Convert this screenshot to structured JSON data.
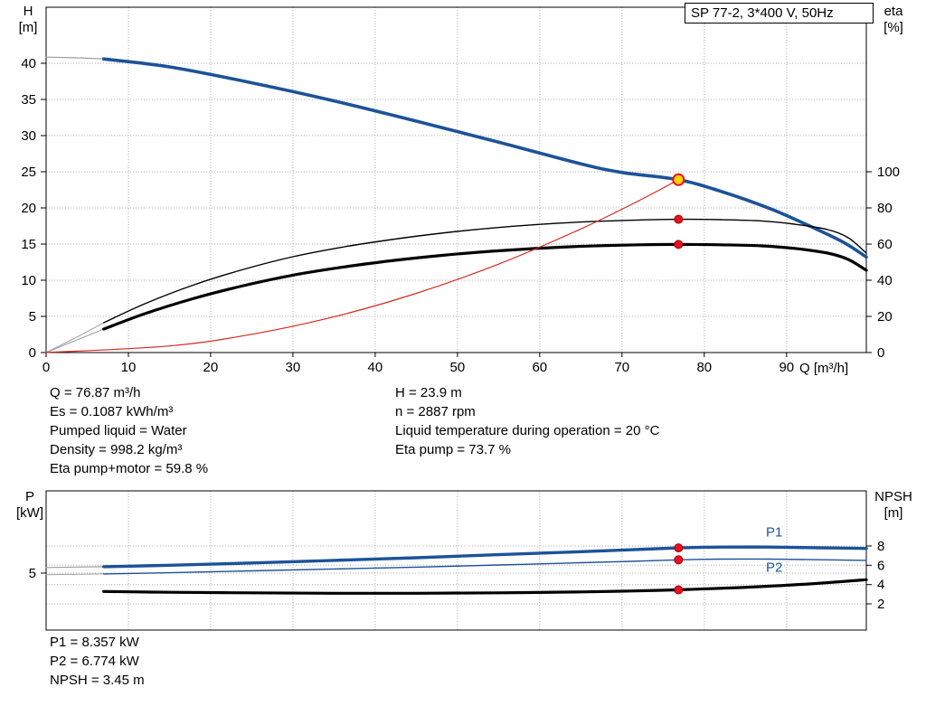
{
  "title_box": "SP 77-2, 3*400 V, 50Hz",
  "colors": {
    "blue": "#1c5299",
    "black": "#000000",
    "red": "#d22b1f",
    "gray_lead": "#9e9e9e",
    "grid": "#b0b0b0",
    "marker_fill": "#e8111c",
    "marker_edge": "#9d0208",
    "duty_fill": "#ffd500"
  },
  "info_top_left": [
    "Q = 76.87 m³/h",
    "Es = 0.1087 kWh/m³",
    "Pumped liquid = Water",
    "Density = 998.2 kg/m³",
    "Eta pump+motor = 59.8 %"
  ],
  "info_top_right": [
    "H = 23.9 m",
    "n = 2887 rpm",
    "Liquid temperature during operation = 20 °C",
    "Eta pump = 73.7 %"
  ],
  "info_bottom": [
    "P1 = 8.357 kW",
    "P2 = 6.774 kW",
    "NPSH = 3.45 m"
  ],
  "operating_point": {
    "Q_m3h": 76.87,
    "H_m": 23.9,
    "eta_pump_pct": 73.7,
    "eta_pump_motor_pct": 59.8,
    "P1_kW": 8.357,
    "P2_kW": 6.774,
    "NPSH_m": 3.45,
    "n_rpm": 2887,
    "Es_kWh_m3": 0.1087,
    "liquid": "Water",
    "density_kg_m3": 998.2,
    "liquid_temp_C": 20
  },
  "chart_data": [
    {
      "type": "line",
      "title": "SP 77-2, 3*400 V, 50Hz",
      "x_axis": {
        "label": "Q [m³/h]",
        "min": 0,
        "max": 99.7,
        "ticks": [
          0,
          10,
          20,
          30,
          40,
          50,
          60,
          70,
          80,
          90
        ],
        "show_labels": true
      },
      "y_left": {
        "symbol": "H",
        "unit": "[m]",
        "min": 0,
        "max": 47.75,
        "ticks": [
          0,
          5,
          10,
          15,
          20,
          25,
          30,
          35,
          40
        ],
        "grid": true
      },
      "y_right": {
        "symbol": "eta",
        "unit": "[%]",
        "min": 0,
        "max": 191,
        "ticks": [
          0,
          20,
          40,
          60,
          80,
          100
        ],
        "grid": false
      },
      "series": [
        {
          "name": "head-lead",
          "axis": "left",
          "color": "gray_lead",
          "width": 1.2,
          "points": [
            [
              0,
              40.85
            ],
            [
              4,
              40.75
            ],
            [
              7,
              40.6
            ]
          ]
        },
        {
          "name": "head",
          "axis": "left",
          "color": "blue",
          "width": 3.6,
          "points": [
            [
              7,
              40.6
            ],
            [
              15,
              39.5
            ],
            [
              25,
              37.3
            ],
            [
              35,
              34.8
            ],
            [
              45,
              32.0
            ],
            [
              55,
              29.1
            ],
            [
              65,
              26.1
            ],
            [
              70,
              24.9
            ],
            [
              76.87,
              23.9
            ],
            [
              82,
              22.3
            ],
            [
              88,
              19.9
            ],
            [
              93,
              17.4
            ],
            [
              97,
              15.2
            ],
            [
              99.7,
              13.2
            ]
          ]
        },
        {
          "name": "eta-pump-lead",
          "axis": "right",
          "color": "gray_lead",
          "width": 1,
          "points": [
            [
              0,
              0
            ],
            [
              3.5,
              8
            ],
            [
              7,
              16.5
            ]
          ]
        },
        {
          "name": "eta-pump",
          "axis": "right",
          "color": "black",
          "width": 1.4,
          "points": [
            [
              7,
              16.5
            ],
            [
              12,
              27
            ],
            [
              18,
              37.5
            ],
            [
              24,
              46
            ],
            [
              30,
              53
            ],
            [
              36,
              58.3
            ],
            [
              42,
              62.5
            ],
            [
              48,
              66
            ],
            [
              54,
              68.8
            ],
            [
              60,
              70.9
            ],
            [
              66,
              72.4
            ],
            [
              72,
              73.3
            ],
            [
              76.87,
              73.7
            ],
            [
              82,
              73.5
            ],
            [
              87,
              72.8
            ],
            [
              91,
              71
            ],
            [
              95,
              68
            ],
            [
              97.5,
              63.5
            ],
            [
              99.7,
              55
            ]
          ]
        },
        {
          "name": "eta-pump-motor-lead",
          "axis": "right",
          "color": "gray_lead",
          "width": 1,
          "points": [
            [
              0,
              0
            ],
            [
              3.5,
              6.5
            ],
            [
              7,
              13
            ]
          ]
        },
        {
          "name": "eta-pump-motor",
          "axis": "right",
          "color": "black",
          "width": 3.2,
          "points": [
            [
              7,
              13
            ],
            [
              12,
              21.5
            ],
            [
              18,
              30
            ],
            [
              24,
              37
            ],
            [
              30,
              42.8
            ],
            [
              36,
              47.2
            ],
            [
              42,
              50.8
            ],
            [
              48,
              53.7
            ],
            [
              54,
              56
            ],
            [
              60,
              57.7
            ],
            [
              66,
              58.9
            ],
            [
              72,
              59.6
            ],
            [
              76.87,
              59.8
            ],
            [
              82,
              59.6
            ],
            [
              87,
              59
            ],
            [
              91,
              57.6
            ],
            [
              95,
              55
            ],
            [
              97.5,
              51.5
            ],
            [
              99.7,
              45.5
            ]
          ]
        },
        {
          "name": "qh-operating-line",
          "axis": "left",
          "color": "red",
          "width": 1.2,
          "points": [
            [
              0,
              0
            ],
            [
              15,
              0.91
            ],
            [
              25,
              2.53
            ],
            [
              35,
              4.95
            ],
            [
              45,
              8.19
            ],
            [
              55,
              12.23
            ],
            [
              65,
              17.09
            ],
            [
              72,
              20.96
            ],
            [
              76.87,
              23.9
            ]
          ]
        }
      ],
      "markers": [
        {
          "x": 76.87,
          "y": 23.9,
          "axis": "left",
          "style": "duty"
        },
        {
          "x": 76.87,
          "y": 73.7,
          "axis": "right",
          "style": "dot"
        },
        {
          "x": 76.87,
          "y": 59.8,
          "axis": "right",
          "style": "dot"
        }
      ]
    },
    {
      "type": "line",
      "x_axis": {
        "label": "",
        "min": 0,
        "max": 99.7,
        "ticks": [
          10,
          20,
          30,
          40,
          50,
          60,
          70,
          80,
          90
        ],
        "show_labels": false
      },
      "y_left": {
        "symbol": "P",
        "unit": "[kW]",
        "min": -2.57,
        "max": 15.94,
        "ticks": [
          5
        ],
        "grid": true
      },
      "y_right": {
        "symbol": "NPSH",
        "unit": "[m]",
        "min": -0.72,
        "max": 13.72,
        "ticks": [
          2,
          4,
          6,
          8
        ],
        "grid": true
      },
      "series": [
        {
          "name": "p1-lead",
          "axis": "left",
          "color": "gray_lead",
          "width": 1.2,
          "points": [
            [
              0,
              5.75
            ],
            [
              7,
              5.85
            ]
          ]
        },
        {
          "name": "p1",
          "axis": "left",
          "color": "blue",
          "width": 3.4,
          "points": [
            [
              7,
              5.85
            ],
            [
              15,
              6.05
            ],
            [
              25,
              6.35
            ],
            [
              35,
              6.7
            ],
            [
              45,
              7.05
            ],
            [
              55,
              7.45
            ],
            [
              65,
              7.85
            ],
            [
              71,
              8.1
            ],
            [
              76.87,
              8.357
            ],
            [
              82,
              8.46
            ],
            [
              88,
              8.46
            ],
            [
              94,
              8.37
            ],
            [
              99.7,
              8.28
            ]
          ]
        },
        {
          "name": "p2-lead",
          "axis": "left",
          "color": "gray_lead",
          "width": 1,
          "points": [
            [
              0,
              4.8
            ],
            [
              7,
              4.9
            ]
          ]
        },
        {
          "name": "p2",
          "axis": "left",
          "color": "blue",
          "width": 1.4,
          "points": [
            [
              7,
              4.9
            ],
            [
              15,
              5.05
            ],
            [
              25,
              5.3
            ],
            [
              35,
              5.55
            ],
            [
              45,
              5.8
            ],
            [
              55,
              6.08
            ],
            [
              65,
              6.38
            ],
            [
              71,
              6.57
            ],
            [
              76.87,
              6.774
            ],
            [
              82,
              6.86
            ],
            [
              88,
              6.86
            ],
            [
              94,
              6.78
            ],
            [
              99.7,
              6.7
            ]
          ]
        },
        {
          "name": "npsh",
          "axis": "right",
          "color": "black",
          "width": 3.2,
          "points": [
            [
              7,
              3.28
            ],
            [
              15,
              3.2
            ],
            [
              25,
              3.14
            ],
            [
              35,
              3.1
            ],
            [
              45,
              3.1
            ],
            [
              55,
              3.14
            ],
            [
              65,
              3.24
            ],
            [
              71,
              3.33
            ],
            [
              76.87,
              3.45
            ],
            [
              84,
              3.68
            ],
            [
              92,
              4.02
            ],
            [
              99.7,
              4.5
            ]
          ]
        }
      ],
      "series_labels": [
        {
          "text": "P1",
          "x": 87.5,
          "y": 9.9,
          "axis": "left"
        },
        {
          "text": "P2",
          "x": 87.5,
          "y": 5.2,
          "axis": "left"
        }
      ],
      "markers": [
        {
          "x": 76.87,
          "y": 8.357,
          "axis": "left",
          "style": "dot"
        },
        {
          "x": 76.87,
          "y": 6.774,
          "axis": "left",
          "style": "dot"
        },
        {
          "x": 76.87,
          "y": 3.45,
          "axis": "right",
          "style": "dot"
        }
      ]
    }
  ]
}
